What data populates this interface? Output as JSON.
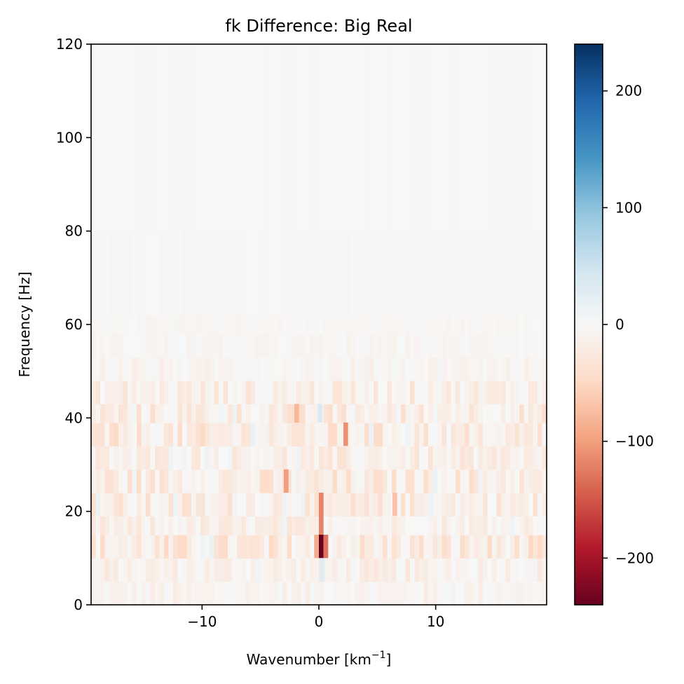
{
  "chart_data": {
    "type": "heatmap",
    "title": "fk Difference: Big Real",
    "xlabel": "Wavenumber [km",
    "xlabel_sup": "−1",
    "xlabel_tail": "]",
    "ylabel": "Frequency [Hz]",
    "xlim": [
      -19.5,
      19.5
    ],
    "ylim": [
      0,
      120
    ],
    "x_ticks": [
      -10,
      0,
      10
    ],
    "x_tick_labels": [
      "−10",
      "0",
      "10"
    ],
    "y_ticks": [
      0,
      20,
      40,
      60,
      80,
      100,
      120
    ],
    "y_tick_labels": [
      "0",
      "20",
      "40",
      "60",
      "80",
      "100",
      "120"
    ],
    "colormap": "RdBu",
    "color_low": "#67001f",
    "color_mid": "#f7f7f7",
    "color_high": "#053061",
    "colorbar": {
      "range": [
        -240,
        240
      ],
      "ticks": [
        -200,
        -100,
        0,
        100,
        200
      ],
      "tick_labels": [
        "−200",
        "−100",
        "0",
        "100",
        "200"
      ]
    },
    "frequency_bands": [
      {
        "f": [
          0,
          5
        ],
        "amplitude": 12
      },
      {
        "f": [
          5,
          10
        ],
        "amplitude": 18
      },
      {
        "f": [
          10,
          15
        ],
        "amplitude": 32
      },
      {
        "f": [
          15,
          19
        ],
        "amplitude": 20
      },
      {
        "f": [
          19,
          24
        ],
        "amplitude": 26
      },
      {
        "f": [
          24,
          29
        ],
        "amplitude": 30
      },
      {
        "f": [
          29,
          34
        ],
        "amplitude": 22
      },
      {
        "f": [
          34,
          39
        ],
        "amplitude": 30
      },
      {
        "f": [
          39,
          43
        ],
        "amplitude": 28
      },
      {
        "f": [
          43,
          48
        ],
        "amplitude": 22
      },
      {
        "f": [
          48,
          53
        ],
        "amplitude": 10
      },
      {
        "f": [
          53,
          58
        ],
        "amplitude": 6
      },
      {
        "f": [
          58,
          62
        ],
        "amplitude": 4
      },
      {
        "f": [
          62,
          80
        ],
        "amplitude": 2
      },
      {
        "f": [
          80,
          120
        ],
        "amplitude": 1
      }
    ],
    "highlights": [
      {
        "k": 0.2,
        "f": [
          10,
          15
        ],
        "value": -240
      },
      {
        "k": 0.2,
        "f": [
          15,
          24
        ],
        "value": -120
      },
      {
        "k": 0.6,
        "f": [
          10,
          15
        ],
        "value": -130
      },
      {
        "k": -0.2,
        "f": [
          10,
          15
        ],
        "value": -90
      },
      {
        "k": 2.3,
        "f": [
          34,
          39
        ],
        "value": -110
      },
      {
        "k": -2.8,
        "f": [
          24,
          29
        ],
        "value": -100
      },
      {
        "k": -1.9,
        "f": [
          39,
          43
        ],
        "value": -80
      },
      {
        "k": 0.1,
        "f": [
          39,
          43
        ],
        "value": 35
      },
      {
        "k": 0.3,
        "f": [
          5,
          10
        ],
        "value": 30
      },
      {
        "k": 6.5,
        "f": [
          19,
          24
        ],
        "value": -70
      }
    ]
  }
}
